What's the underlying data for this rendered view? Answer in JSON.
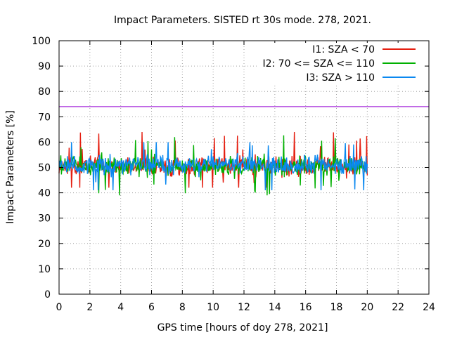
{
  "chart_data": {
    "type": "line",
    "title": "Impact Parameters. SISTED rt 30s mode. 278, 2021.",
    "xlabel": "GPS time [hours of doy 278, 2021]",
    "ylabel": "Impact Parameters [%]",
    "xlim": [
      0,
      24
    ],
    "ylim": [
      0,
      100
    ],
    "x_ticks": [
      "0",
      "2",
      "4",
      "6",
      "8",
      "10",
      "12",
      "14",
      "16",
      "18",
      "20",
      "22",
      "24"
    ],
    "y_ticks": [
      "0",
      "10",
      "20",
      "30",
      "40",
      "50",
      "60",
      "70",
      "80",
      "90",
      "100"
    ],
    "grid": true,
    "legend_position": "top-right",
    "reference_line": {
      "y": 74,
      "color": "#9400d3"
    },
    "series": [
      {
        "name": "I1: SZA < 70",
        "color": "#e51e10",
        "x_range": [
          0,
          20
        ],
        "mean": 50.5,
        "noise_min": 42,
        "noise_max": 64
      },
      {
        "name": "I2: 70 <= SZA <= 110",
        "color": "#00b000",
        "x_range": [
          0,
          20
        ],
        "mean": 50.5,
        "noise_min": 39,
        "noise_max": 64
      },
      {
        "name": "I3: SZA > 110",
        "color": "#0a88f0",
        "x_range": [
          0,
          20
        ],
        "mean": 51,
        "noise_min": 41,
        "noise_max": 60
      }
    ]
  }
}
